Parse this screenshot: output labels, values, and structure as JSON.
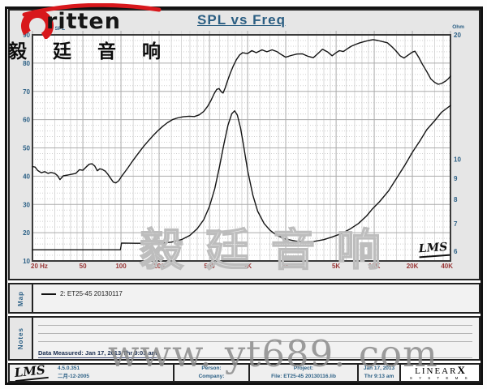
{
  "header": {
    "title": "SPL vs Freq"
  },
  "branding": {
    "logo_text": "ritten",
    "logo_cn": "毅 廷 音 响",
    "watermark_cn": "毅廷音响",
    "watermark_url": "www. yt689. com",
    "lms_inplot": "LMS"
  },
  "chart_data": {
    "type": "line",
    "title": "SPL vs Freq",
    "x_axis": {
      "scale": "log",
      "min": 20,
      "max": 40000,
      "ticks": [
        {
          "f": 20,
          "label": "20 Hz"
        },
        {
          "f": 50,
          "label": "50"
        },
        {
          "f": 100,
          "label": "100"
        },
        {
          "f": 200,
          "label": "200"
        },
        {
          "f": 500,
          "label": "500"
        },
        {
          "f": 1000,
          "label": "1K"
        },
        {
          "f": 2000,
          "label": "2K"
        },
        {
          "f": 5000,
          "label": "5K"
        },
        {
          "f": 10000,
          "label": "10K"
        },
        {
          "f": 20000,
          "label": "20K"
        },
        {
          "f": 40000,
          "label": "40K"
        }
      ]
    },
    "y_left": {
      "label": "dB SPL",
      "scale": "linear",
      "min": 10,
      "max": 90,
      "major_step": 10,
      "minor_step": 2,
      "ticks": [
        90,
        80,
        70,
        60,
        50,
        40,
        30,
        20,
        10
      ]
    },
    "y_right": {
      "label": "Ohm",
      "scale": "log",
      "min": 6,
      "max": 20,
      "ticks": [
        20,
        10,
        9,
        8,
        7,
        6
      ]
    },
    "series": [
      {
        "key": "spl",
        "axis": "left",
        "unit": "dB",
        "points": [
          [
            20,
            43.4
          ],
          [
            21,
            43.2
          ],
          [
            22,
            42.0
          ],
          [
            23.5,
            41.2
          ],
          [
            25,
            41.6
          ],
          [
            26.5,
            41.0
          ],
          [
            28,
            41.3
          ],
          [
            30,
            41.0
          ],
          [
            31.5,
            40.2
          ],
          [
            33,
            38.8
          ],
          [
            35,
            40.1
          ],
          [
            38,
            40.4
          ],
          [
            41,
            40.7
          ],
          [
            44,
            41.0
          ],
          [
            47,
            42.3
          ],
          [
            50,
            42.1
          ],
          [
            53,
            43.2
          ],
          [
            56,
            44.2
          ],
          [
            59,
            44.4
          ],
          [
            62,
            43.6
          ],
          [
            65,
            41.9
          ],
          [
            68,
            42.6
          ],
          [
            71,
            42.4
          ],
          [
            75,
            41.8
          ],
          [
            79,
            40.6
          ],
          [
            83,
            39.2
          ],
          [
            87,
            37.9
          ],
          [
            91,
            37.6
          ],
          [
            96,
            38.4
          ],
          [
            101,
            39.9
          ],
          [
            107,
            41.4
          ],
          [
            114,
            43.1
          ],
          [
            122,
            45.0
          ],
          [
            131,
            46.9
          ],
          [
            141,
            48.8
          ],
          [
            152,
            50.7
          ],
          [
            164,
            52.4
          ],
          [
            178,
            54.2
          ],
          [
            194,
            55.9
          ],
          [
            212,
            57.5
          ],
          [
            232,
            58.9
          ],
          [
            255,
            60.0
          ],
          [
            280,
            60.6
          ],
          [
            310,
            61.0
          ],
          [
            345,
            61.2
          ],
          [
            380,
            61.1
          ],
          [
            415,
            61.7
          ],
          [
            450,
            62.9
          ],
          [
            485,
            64.8
          ],
          [
            515,
            66.9
          ],
          [
            545,
            69.2
          ],
          [
            570,
            70.7
          ],
          [
            595,
            71.0
          ],
          [
            620,
            69.8
          ],
          [
            640,
            69.4
          ],
          [
            665,
            71.2
          ],
          [
            695,
            73.8
          ],
          [
            730,
            76.4
          ],
          [
            770,
            79.0
          ],
          [
            815,
            81.2
          ],
          [
            865,
            82.9
          ],
          [
            915,
            83.7
          ],
          [
            960,
            83.5
          ],
          [
            1000,
            83.4
          ],
          [
            1080,
            84.4
          ],
          [
            1170,
            83.7
          ],
          [
            1300,
            84.7
          ],
          [
            1420,
            84.0
          ],
          [
            1560,
            84.7
          ],
          [
            1700,
            84.1
          ],
          [
            1850,
            83.0
          ],
          [
            2000,
            82.1
          ],
          [
            2200,
            82.7
          ],
          [
            2450,
            83.2
          ],
          [
            2700,
            83.3
          ],
          [
            3000,
            82.4
          ],
          [
            3300,
            81.9
          ],
          [
            3600,
            83.4
          ],
          [
            3900,
            84.9
          ],
          [
            4300,
            83.9
          ],
          [
            4650,
            82.6
          ],
          [
            5000,
            83.7
          ],
          [
            5300,
            84.4
          ],
          [
            5700,
            84.1
          ],
          [
            6100,
            85.0
          ],
          [
            6600,
            86.0
          ],
          [
            7100,
            86.6
          ],
          [
            7700,
            87.2
          ],
          [
            8300,
            87.6
          ],
          [
            9000,
            88.0
          ],
          [
            9800,
            88.3
          ],
          [
            10700,
            88.0
          ],
          [
            11700,
            87.6
          ],
          [
            12700,
            87.2
          ],
          [
            13700,
            85.9
          ],
          [
            14800,
            84.4
          ],
          [
            16000,
            82.6
          ],
          [
            17200,
            81.8
          ],
          [
            18600,
            82.9
          ],
          [
            20000,
            83.9
          ],
          [
            21000,
            84.2
          ],
          [
            22500,
            82.0
          ],
          [
            24000,
            79.6
          ],
          [
            26000,
            77.0
          ],
          [
            28000,
            74.4
          ],
          [
            30000,
            73.2
          ],
          [
            32000,
            72.5
          ],
          [
            34000,
            72.8
          ],
          [
            36500,
            73.6
          ],
          [
            38500,
            74.5
          ],
          [
            40000,
            75.4
          ]
        ]
      },
      {
        "key": "impedance",
        "axis": "right",
        "unit": "ohm",
        "points": [
          [
            20,
            6.05
          ],
          [
            40,
            6.05
          ],
          [
            70,
            6.05
          ],
          [
            99,
            6.05
          ],
          [
            101,
            6.28
          ],
          [
            130,
            6.27
          ],
          [
            170,
            6.27
          ],
          [
            210,
            6.28
          ],
          [
            250,
            6.31
          ],
          [
            300,
            6.4
          ],
          [
            350,
            6.55
          ],
          [
            400,
            6.8
          ],
          [
            450,
            7.15
          ],
          [
            500,
            7.7
          ],
          [
            550,
            8.5
          ],
          [
            600,
            9.6
          ],
          [
            650,
            10.9
          ],
          [
            700,
            12.1
          ],
          [
            750,
            12.9
          ],
          [
            790,
            13.1
          ],
          [
            830,
            12.8
          ],
          [
            880,
            11.9
          ],
          [
            930,
            10.8
          ],
          [
            1000,
            9.4
          ],
          [
            1100,
            8.2
          ],
          [
            1200,
            7.5
          ],
          [
            1350,
            7.0
          ],
          [
            1500,
            6.75
          ],
          [
            1700,
            6.55
          ],
          [
            2000,
            6.42
          ],
          [
            2400,
            6.35
          ],
          [
            2800,
            6.32
          ],
          [
            3300,
            6.33
          ],
          [
            4000,
            6.4
          ],
          [
            4700,
            6.5
          ],
          [
            5500,
            6.62
          ],
          [
            6500,
            6.8
          ],
          [
            7500,
            7.0
          ],
          [
            8700,
            7.3
          ],
          [
            9700,
            7.6
          ],
          [
            11000,
            7.9
          ],
          [
            13000,
            8.4
          ],
          [
            15000,
            9.0
          ],
          [
            17500,
            9.7
          ],
          [
            20000,
            10.4
          ],
          [
            23000,
            11.1
          ],
          [
            26000,
            11.8
          ],
          [
            30000,
            12.4
          ],
          [
            34000,
            13.0
          ],
          [
            40000,
            13.5
          ]
        ]
      }
    ]
  },
  "map_panel": {
    "label": "Map",
    "legend": "2: ET25-45  20130117"
  },
  "notes_panel": {
    "label": "Notes",
    "measured": "Data Measured: Jan 17, 2013  Thr  9:03 am"
  },
  "footer": {
    "lms": "LMS",
    "version": "4.5.0.351",
    "build_date": "二月-12-2005",
    "person_label": "Person:",
    "company_label": "Company:",
    "project_label": "Project:",
    "file": "File: ET25-45 20130116.lib",
    "date": "Jan 17, 2013",
    "time": "Thr  9:13 am",
    "brand": "LINEAR",
    "brand_x": "X",
    "brand_sub": "S Y S T E M S"
  },
  "colors": {
    "accent_blue": "#2d6186",
    "axis_red": "#993636",
    "curve": "#141414",
    "logo_red": "#d8181c"
  }
}
